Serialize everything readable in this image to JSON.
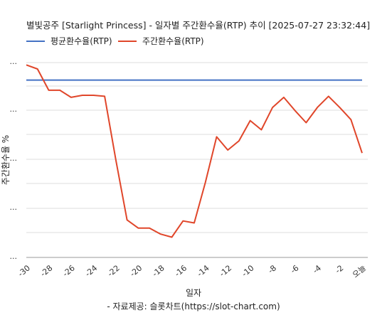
{
  "chart_data": {
    "type": "line",
    "title": "별빛공주 [Starlight Princess] - 일자별 주간환수율(RTP) 추이 [2025-07-27 23:32:44]",
    "xlabel": "일자",
    "ylabel": "주간환수율 %",
    "source": "- 자료제공: 슬롯차트(https://slot-chart.com)",
    "grid": true,
    "legend_position": "top-left",
    "x_tick_labels": [
      "-30",
      "-28",
      "-26",
      "-24",
      "-22",
      "-20",
      "-18",
      "-16",
      "-14",
      "-12",
      "-10",
      "-8",
      "-6",
      "-4",
      "-2",
      "오늘"
    ],
    "y_tick_labels": [
      "...",
      "...",
      "...",
      "...",
      "..."
    ],
    "y_range_note": "y tick values are masked in the original",
    "x": [
      -30,
      -29,
      -28,
      -27,
      -26,
      -25,
      -24,
      -23,
      -22,
      -21,
      -20,
      -19,
      -18,
      -17,
      -16,
      -15,
      -14,
      -13,
      -12,
      -11,
      -10,
      -9,
      -8,
      -7,
      -6,
      -5,
      -4,
      -3,
      -2,
      -1,
      0
    ],
    "series": [
      {
        "name": "평균환수율(RTP)",
        "color": "#4472c4",
        "values": [
          96.5,
          96.5,
          96.5,
          96.5,
          96.5,
          96.5,
          96.5,
          96.5,
          96.5,
          96.5,
          96.5,
          96.5,
          96.5,
          96.5,
          96.5,
          96.5,
          96.5,
          96.5,
          96.5,
          96.5,
          96.5,
          96.5,
          96.5,
          96.5,
          96.5,
          96.5,
          96.5,
          96.5,
          96.5,
          96.5,
          96.5
        ]
      },
      {
        "name": "주간환수율(RTP)",
        "color": "#e0462a",
        "values": [
          98.0,
          97.6,
          95.5,
          95.5,
          94.8,
          95.0,
          95.0,
          94.9,
          88.6,
          82.7,
          81.9,
          81.9,
          81.3,
          81.0,
          82.6,
          82.4,
          86.4,
          90.9,
          89.6,
          90.5,
          92.5,
          91.6,
          93.8,
          94.8,
          93.5,
          92.3,
          93.8,
          94.9,
          93.8,
          92.6,
          89.3
        ]
      }
    ]
  }
}
